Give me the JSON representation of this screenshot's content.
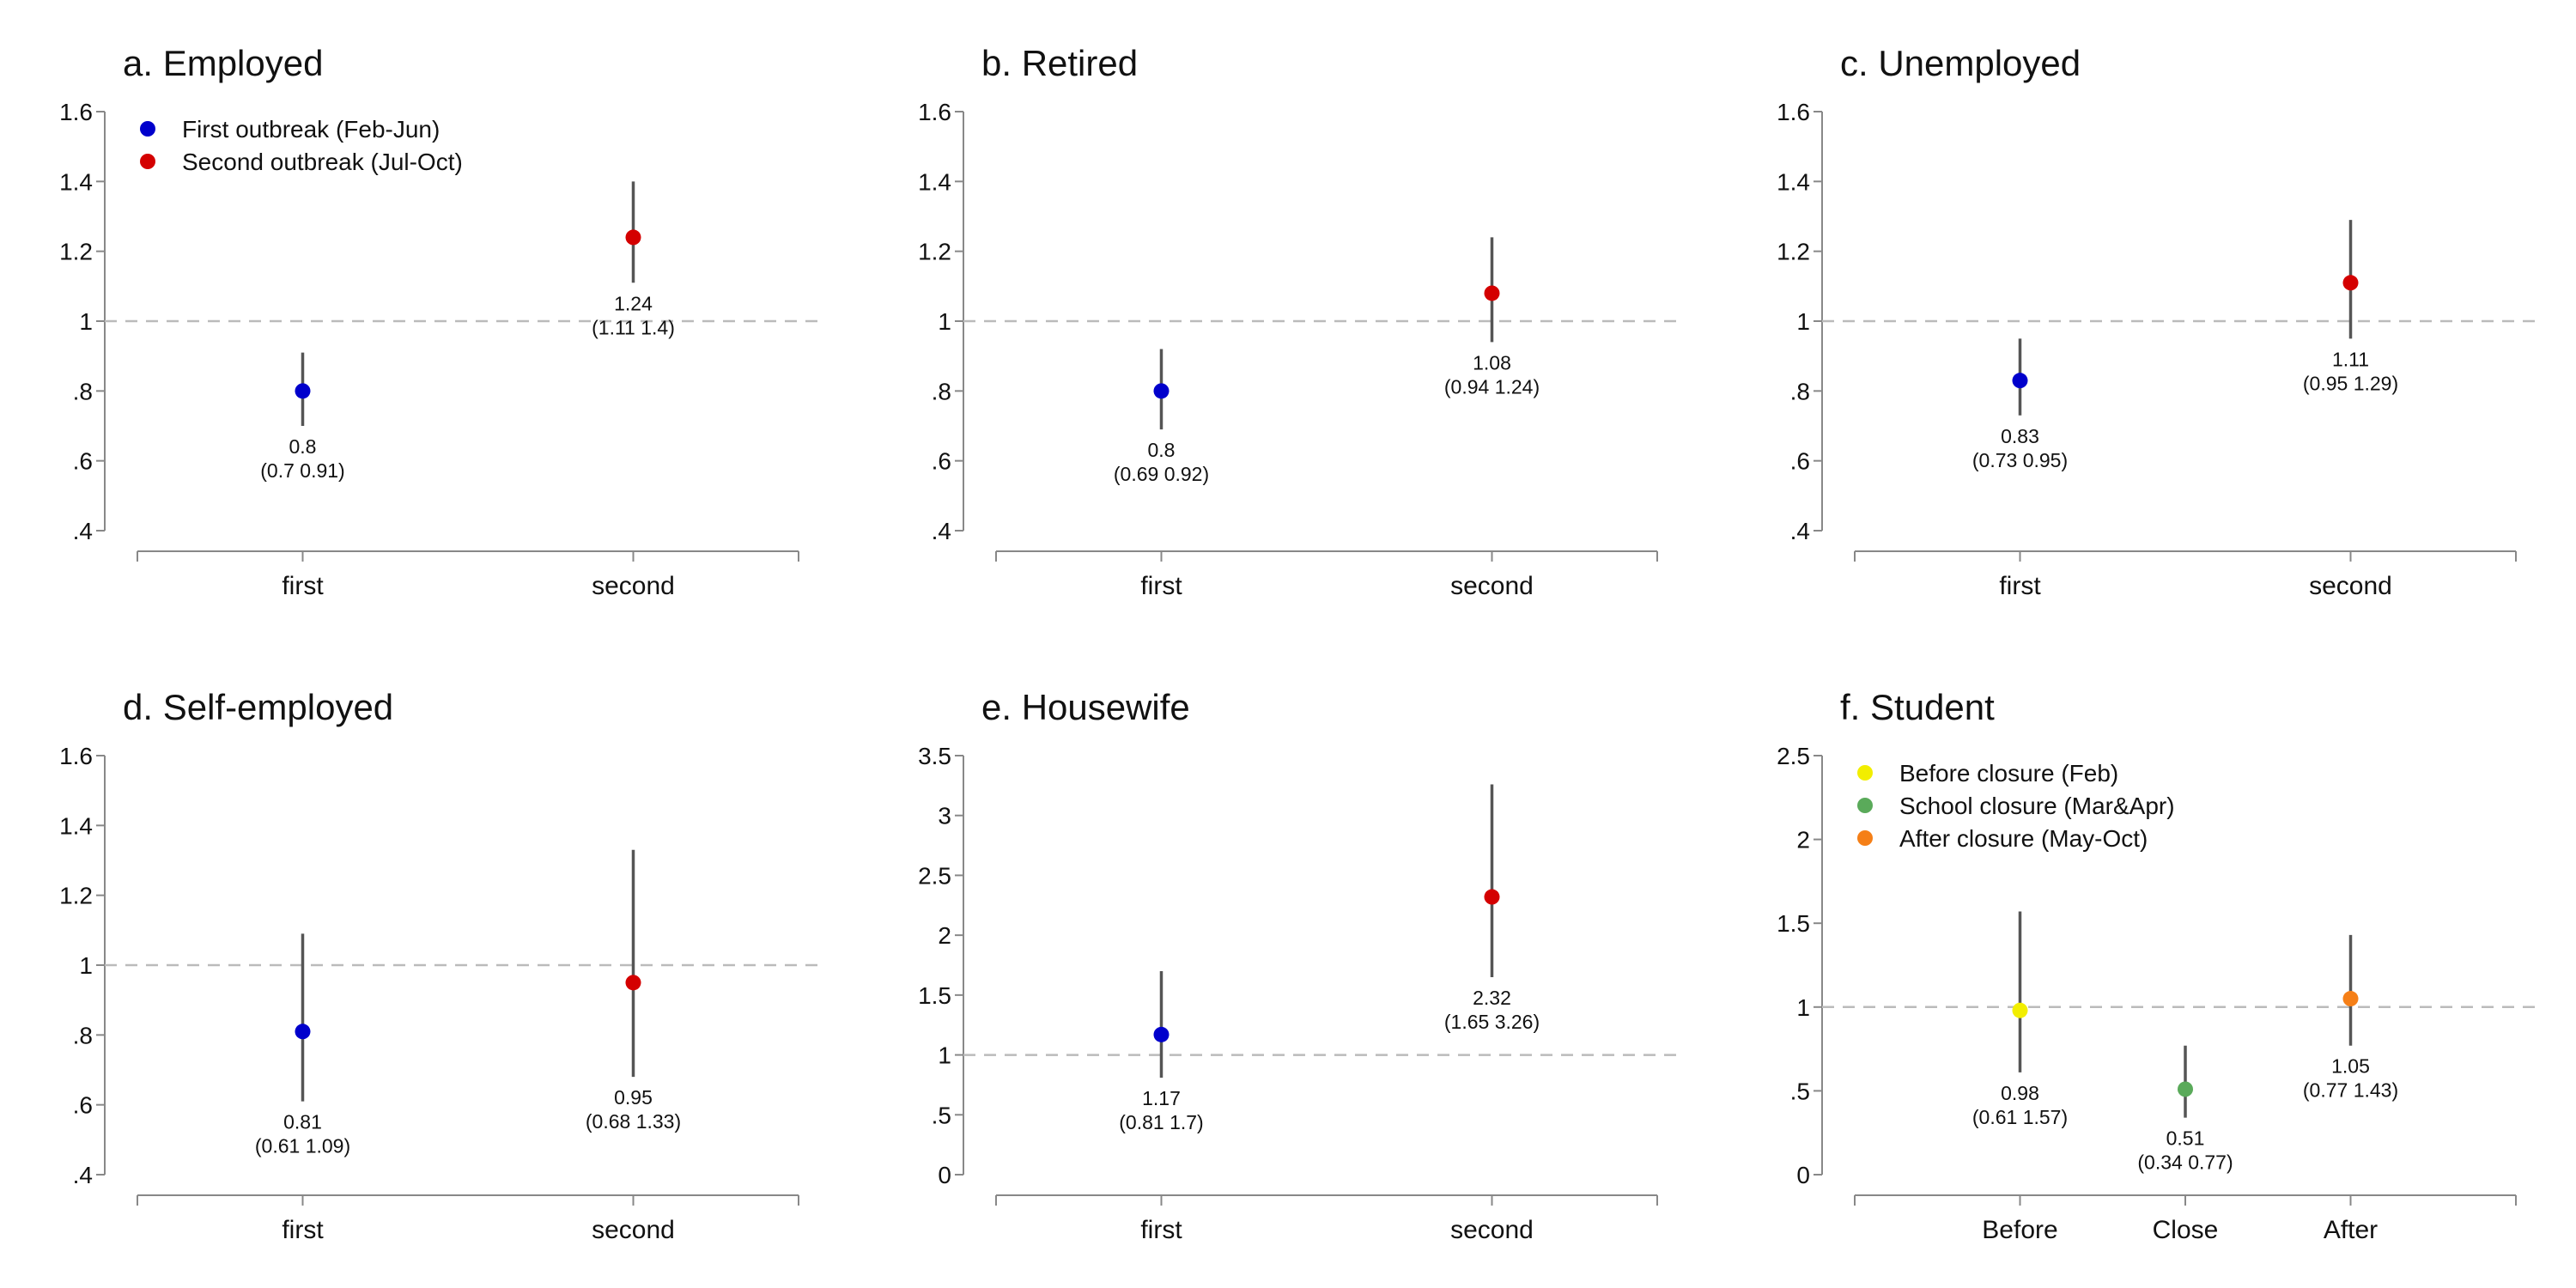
{
  "chart_data": [
    {
      "type": "scatter",
      "title": "a. Employed",
      "categories": [
        "first",
        "second"
      ],
      "ylim": [
        0.4,
        1.6
      ],
      "yticks": [
        0.4,
        0.6,
        0.8,
        1,
        1.2,
        1.4,
        1.6
      ],
      "ytick_labels": [
        ".4",
        ".6",
        ".8",
        "1",
        "1.2",
        "1.4",
        "1.6"
      ],
      "reference_line": 1,
      "legend": [
        {
          "label": "First outbreak (Feb-Jun)",
          "color": "#0000cc"
        },
        {
          "label": "Second outbreak (Jul-Oct)",
          "color": "#d40000"
        }
      ],
      "points": [
        {
          "x": "first",
          "value": 0.8,
          "lower": 0.7,
          "upper": 0.91,
          "color": "#0000cc",
          "label_value": "0.8",
          "label_ci": "(0.7 0.91)"
        },
        {
          "x": "second",
          "value": 1.24,
          "lower": 1.11,
          "upper": 1.4,
          "color": "#d40000",
          "label_value": "1.24",
          "label_ci": "(1.11 1.4)"
        }
      ]
    },
    {
      "type": "scatter",
      "title": "b. Retired",
      "categories": [
        "first",
        "second"
      ],
      "ylim": [
        0.4,
        1.6
      ],
      "yticks": [
        0.4,
        0.6,
        0.8,
        1,
        1.2,
        1.4,
        1.6
      ],
      "ytick_labels": [
        ".4",
        ".6",
        ".8",
        "1",
        "1.2",
        "1.4",
        "1.6"
      ],
      "reference_line": 1,
      "points": [
        {
          "x": "first",
          "value": 0.8,
          "lower": 0.69,
          "upper": 0.92,
          "color": "#0000cc",
          "label_value": "0.8",
          "label_ci": "(0.69 0.92)"
        },
        {
          "x": "second",
          "value": 1.08,
          "lower": 0.94,
          "upper": 1.24,
          "color": "#d40000",
          "label_value": "1.08",
          "label_ci": "(0.94 1.24)"
        }
      ]
    },
    {
      "type": "scatter",
      "title": "c. Unemployed",
      "categories": [
        "first",
        "second"
      ],
      "ylim": [
        0.4,
        1.6
      ],
      "yticks": [
        0.4,
        0.6,
        0.8,
        1,
        1.2,
        1.4,
        1.6
      ],
      "ytick_labels": [
        ".4",
        ".6",
        ".8",
        "1",
        "1.2",
        "1.4",
        "1.6"
      ],
      "reference_line": 1,
      "points": [
        {
          "x": "first",
          "value": 0.83,
          "lower": 0.73,
          "upper": 0.95,
          "color": "#0000cc",
          "label_value": "0.83",
          "label_ci": "(0.73 0.95)"
        },
        {
          "x": "second",
          "value": 1.11,
          "lower": 0.95,
          "upper": 1.29,
          "color": "#d40000",
          "label_value": "1.11",
          "label_ci": "(0.95 1.29)"
        }
      ]
    },
    {
      "type": "scatter",
      "title": "d. Self-employed",
      "categories": [
        "first",
        "second"
      ],
      "ylim": [
        0.4,
        1.6
      ],
      "yticks": [
        0.4,
        0.6,
        0.8,
        1,
        1.2,
        1.4,
        1.6
      ],
      "ytick_labels": [
        ".4",
        ".6",
        ".8",
        "1",
        "1.2",
        "1.4",
        "1.6"
      ],
      "reference_line": 1,
      "points": [
        {
          "x": "first",
          "value": 0.81,
          "lower": 0.61,
          "upper": 1.09,
          "color": "#0000cc",
          "label_value": "0.81",
          "label_ci": "(0.61 1.09)"
        },
        {
          "x": "second",
          "value": 0.95,
          "lower": 0.68,
          "upper": 1.33,
          "color": "#d40000",
          "label_value": "0.95",
          "label_ci": "(0.68 1.33)"
        }
      ]
    },
    {
      "type": "scatter",
      "title": "e. Housewife",
      "categories": [
        "first",
        "second"
      ],
      "ylim": [
        0,
        3.5
      ],
      "yticks": [
        0,
        0.5,
        1,
        1.5,
        2,
        2.5,
        3,
        3.5
      ],
      "ytick_labels": [
        "0",
        ".5",
        "1",
        "1.5",
        "2",
        "2.5",
        "3",
        "3.5"
      ],
      "reference_line": 1,
      "points": [
        {
          "x": "first",
          "value": 1.17,
          "lower": 0.81,
          "upper": 1.7,
          "color": "#0000cc",
          "label_value": "1.17",
          "label_ci": "(0.81 1.7)"
        },
        {
          "x": "second",
          "value": 2.32,
          "lower": 1.65,
          "upper": 3.26,
          "color": "#d40000",
          "label_value": "2.32",
          "label_ci": "(1.65 3.26)"
        }
      ]
    },
    {
      "type": "scatter",
      "title": "f. Student",
      "categories": [
        "Before",
        "Close",
        "After"
      ],
      "ylim": [
        0,
        2.5
      ],
      "yticks": [
        0,
        0.5,
        1,
        1.5,
        2,
        2.5
      ],
      "ytick_labels": [
        "0",
        ".5",
        "1",
        "1.5",
        "2",
        "2.5"
      ],
      "reference_line": 1,
      "legend": [
        {
          "label": "Before closure (Feb)",
          "color": "#f2ee00"
        },
        {
          "label": "School closure (Mar&Apr)",
          "color": "#5aaa5a"
        },
        {
          "label": "After closure (May-Oct)",
          "color": "#f57f17"
        }
      ],
      "points": [
        {
          "x": "Before",
          "value": 0.98,
          "lower": 0.61,
          "upper": 1.57,
          "color": "#f2ee00",
          "label_value": "0.98",
          "label_ci": "(0.61 1.57)"
        },
        {
          "x": "Close",
          "value": 0.51,
          "lower": 0.34,
          "upper": 0.77,
          "color": "#5aaa5a",
          "label_value": "0.51",
          "label_ci": "(0.34 0.77)"
        },
        {
          "x": "After",
          "value": 1.05,
          "lower": 0.77,
          "upper": 1.43,
          "color": "#f57f17",
          "label_value": "1.05",
          "label_ci": "(0.77 1.43)"
        }
      ]
    }
  ]
}
